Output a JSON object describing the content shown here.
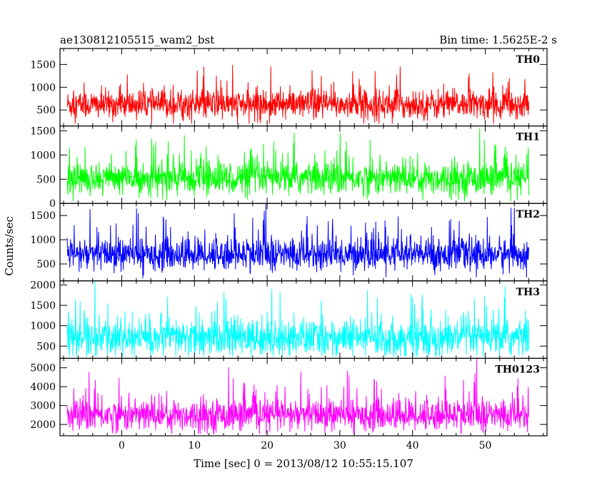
{
  "header": {
    "title": "ae130812105515_wam2_bst",
    "bin_time": "Bin time: 1.5625E-2 s"
  },
  "axes": {
    "ylabel": "Counts/sec",
    "xlabel": "Time [sec] 0 = 2013/08/12 10:55:15.107"
  },
  "chart_data": {
    "type": "line",
    "x_range": [
      -8.5,
      58.5
    ],
    "x_ticks": [
      0,
      10,
      20,
      30,
      40,
      50
    ],
    "x_data_range": [
      -7.5,
      56
    ],
    "bin_time_s": 0.015625,
    "panels": [
      {
        "name": "TH0",
        "color": "#ff0000",
        "ylim": [
          150,
          1850
        ],
        "yticks": [
          500,
          1000,
          1500
        ],
        "mean": 620,
        "spread": 160,
        "min": 200,
        "max": 1850
      },
      {
        "name": "TH1",
        "color": "#00ff00",
        "ylim": [
          0,
          1600
        ],
        "yticks": [
          0,
          500,
          1000,
          1500
        ],
        "mean": 520,
        "spread": 170,
        "min": 40,
        "max": 1600
      },
      {
        "name": "TH2",
        "color": "#0000ff",
        "ylim": [
          150,
          1750
        ],
        "yticks": [
          500,
          1000,
          1500
        ],
        "mean": 700,
        "spread": 170,
        "min": 200,
        "max": 1750
      },
      {
        "name": "TH3",
        "color": "#00ffff",
        "ylim": [
          200,
          2100
        ],
        "yticks": [
          500,
          1000,
          1500,
          2000
        ],
        "mean": 700,
        "spread": 230,
        "min": 250,
        "max": 2100
      },
      {
        "name": "TH0123",
        "color": "#ff00ff",
        "ylim": [
          1400,
          5500
        ],
        "yticks": [
          2000,
          3000,
          4000,
          5000
        ],
        "mean": 2500,
        "spread": 420,
        "min": 1500,
        "max": 5500
      }
    ]
  }
}
